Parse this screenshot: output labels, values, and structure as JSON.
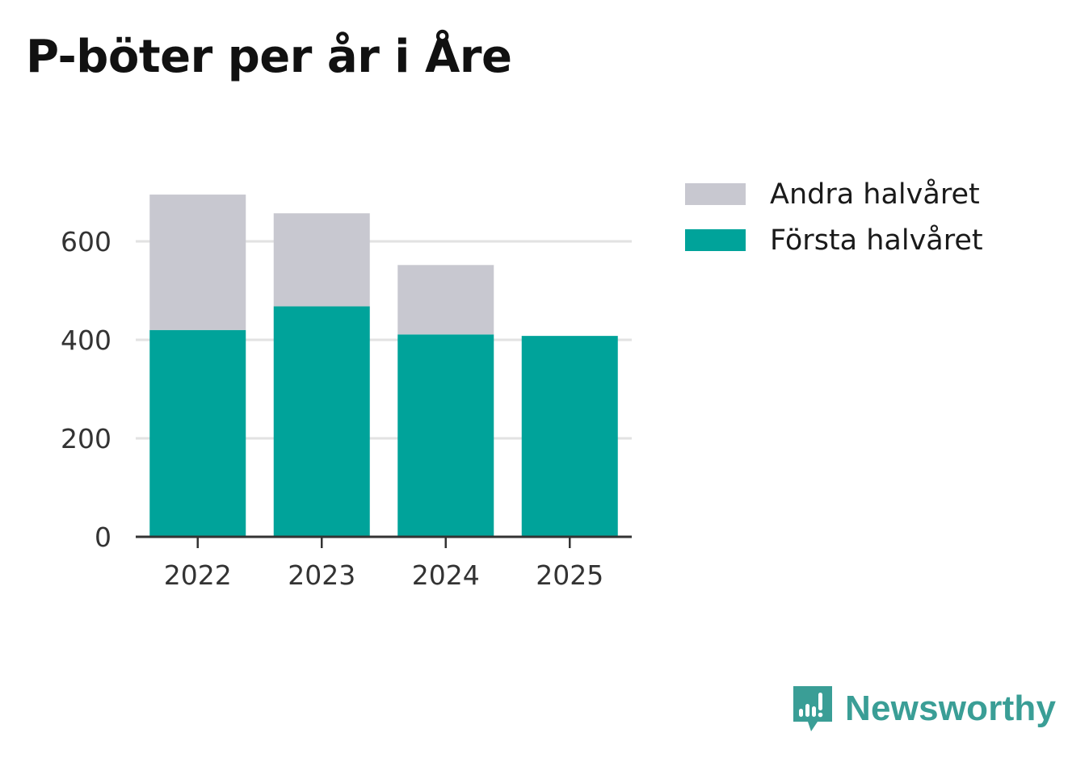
{
  "title": "P-böter per år i Åre",
  "colors": {
    "first_half": "#00a39a",
    "second_half": "#c8c8d0",
    "grid": "#e2e2e2",
    "axis": "#333333",
    "tick_text": "#333333",
    "brand": "#3a9e96"
  },
  "legend": {
    "items": [
      {
        "label": "Andra halvåret",
        "color": "#c8c8d0"
      },
      {
        "label": "Första halvåret",
        "color": "#00a39a"
      }
    ]
  },
  "brand": {
    "name": "Newsworthy",
    "icon": "newsworthy-logo-icon"
  },
  "chart_data": {
    "type": "bar",
    "stacked": true,
    "title": "P-böter per år i Åre",
    "categories": [
      "2022",
      "2023",
      "2024",
      "2025"
    ],
    "series": [
      {
        "name": "Första halvåret",
        "values": [
          420,
          468,
          411,
          408
        ]
      },
      {
        "name": "Andra halvåret",
        "values": [
          275,
          189,
          141,
          0
        ]
      }
    ],
    "yticks": [
      0,
      200,
      400,
      600
    ],
    "ylim": [
      0,
      700
    ],
    "xlabel": "",
    "ylabel": "",
    "grid": true,
    "legend_position": "right"
  }
}
